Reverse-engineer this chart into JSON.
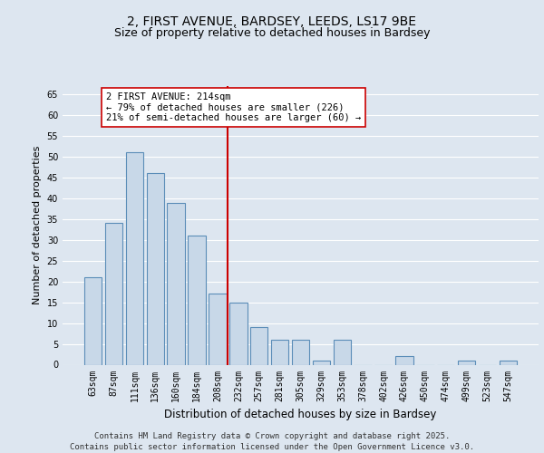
{
  "title": "2, FIRST AVENUE, BARDSEY, LEEDS, LS17 9BE",
  "subtitle": "Size of property relative to detached houses in Bardsey",
  "xlabel": "Distribution of detached houses by size in Bardsey",
  "ylabel": "Number of detached properties",
  "categories": [
    "63sqm",
    "87sqm",
    "111sqm",
    "136sqm",
    "160sqm",
    "184sqm",
    "208sqm",
    "232sqm",
    "257sqm",
    "281sqm",
    "305sqm",
    "329sqm",
    "353sqm",
    "378sqm",
    "402sqm",
    "426sqm",
    "450sqm",
    "474sqm",
    "499sqm",
    "523sqm",
    "547sqm"
  ],
  "values": [
    21,
    34,
    51,
    46,
    39,
    31,
    17,
    15,
    9,
    6,
    6,
    1,
    6,
    0,
    0,
    2,
    0,
    0,
    1,
    0,
    1
  ],
  "bar_color": "#c8d8e8",
  "bar_edge_color": "#5b8db8",
  "bar_edge_width": 0.8,
  "vline_x": 6.5,
  "vline_color": "#cc0000",
  "annotation_text": "2 FIRST AVENUE: 214sqm\n← 79% of detached houses are smaller (226)\n21% of semi-detached houses are larger (60) →",
  "annotation_box_color": "#ffffff",
  "annotation_box_edge": "#cc0000",
  "ylim": [
    0,
    67
  ],
  "yticks": [
    0,
    5,
    10,
    15,
    20,
    25,
    30,
    35,
    40,
    45,
    50,
    55,
    60,
    65
  ],
  "plot_bg": "#dde6f0",
  "fig_bg": "#dde6f0",
  "grid_color": "#ffffff",
  "footer": "Contains HM Land Registry data © Crown copyright and database right 2025.\nContains public sector information licensed under the Open Government Licence v3.0.",
  "title_fontsize": 10,
  "subtitle_fontsize": 9,
  "xlabel_fontsize": 8.5,
  "ylabel_fontsize": 8,
  "tick_fontsize": 7,
  "annotation_fontsize": 7.5,
  "footer_fontsize": 6.5
}
